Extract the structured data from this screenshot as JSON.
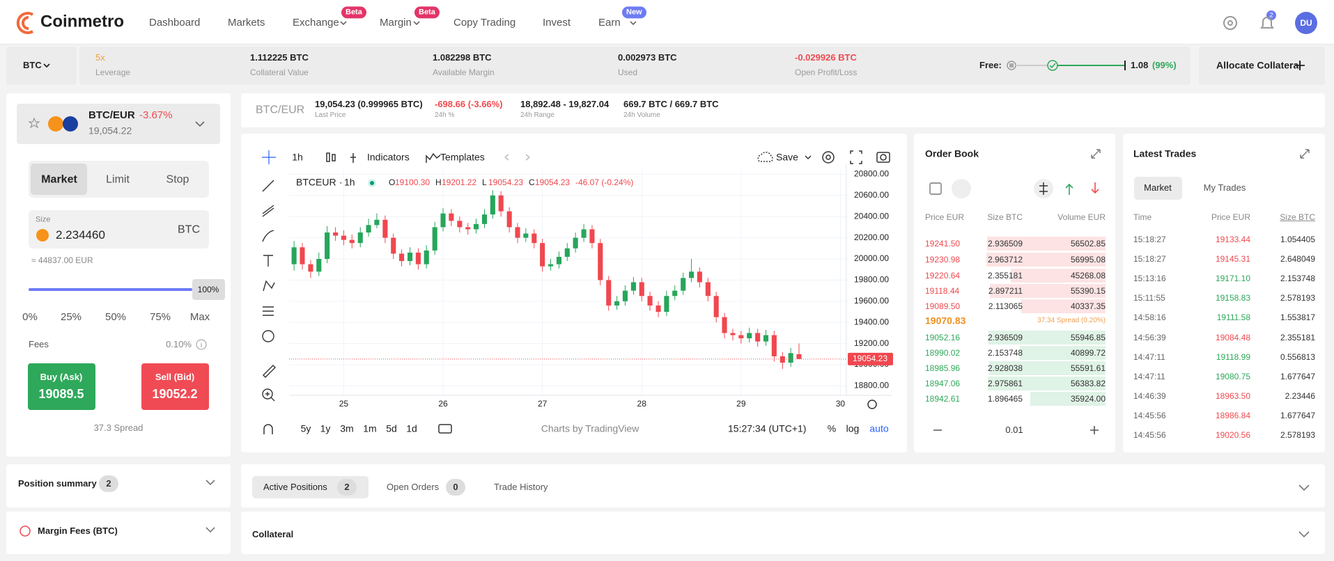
{
  "nav": {
    "logo": "Coinmetro",
    "items": [
      {
        "label": "Dashboard"
      },
      {
        "label": "Markets"
      },
      {
        "label": "Exchange",
        "badge": "Beta"
      },
      {
        "label": "Margin",
        "badge": "Beta"
      },
      {
        "label": "Copy Trading"
      },
      {
        "label": "Invest"
      },
      {
        "label": "Earn",
        "badge": "New"
      }
    ],
    "notification_count": "2",
    "avatar": "DU"
  },
  "margin_bar": {
    "asset": "BTC",
    "stats": [
      {
        "value": "5x",
        "label": "Leverage"
      },
      {
        "value": "1.112225 BTC",
        "label": "Collateral Value"
      },
      {
        "value": "1.082298 BTC",
        "label": "Available Margin"
      },
      {
        "value": "0.002973 BTC",
        "label": "Used"
      },
      {
        "value": "-0.029926 BTC",
        "label": "Open Profit/Loss"
      }
    ],
    "free_label": "Free:",
    "free_value": "1.08",
    "free_percent": "(99%)",
    "allocate_button": "Allocate Collateral"
  },
  "order_form": {
    "pair": "BTC/EUR",
    "change": "-3.67%",
    "price": "19,054.22",
    "tabs": [
      "Market",
      "Limit",
      "Stop"
    ],
    "size_label": "Size",
    "size": "2.234460",
    "size_unit": "BTC",
    "size_eur": "≈ 44837.00 EUR",
    "slider_value": "100%",
    "slider_marks": [
      "0%",
      "25%",
      "50%",
      "75%",
      "Max"
    ],
    "fees_label": "Fees",
    "fees": "0.10%",
    "buy_label": "Buy (Ask)",
    "buy_price": "19089.5",
    "sell_label": "Sell (Bid)",
    "sell_price": "19052.2",
    "spread": "37.3 Spread"
  },
  "pair_info": {
    "pair": "BTC/EUR",
    "stats": [
      {
        "value": "19,054.23 (0.999965 BTC)",
        "label": "Last Price"
      },
      {
        "value": "-698.66 (-3.66%)",
        "label": "24h %"
      },
      {
        "value": "18,892.48 - 19,827.04",
        "label": "24h Range"
      },
      {
        "value": "669.7 BTC / 669.7 BTC",
        "label": "24h Volume"
      }
    ]
  },
  "chart_toolbar": {
    "interval": "1h",
    "indicators": "Indicators",
    "templates": "Templates",
    "save": "Save"
  },
  "chart": {
    "type": "candlestick",
    "symbol": "BTCEUR",
    "interval": "1h",
    "ohlc": [
      {
        "key": "O",
        "value": "19100.30"
      },
      {
        "key": "H",
        "value": "19201.22"
      },
      {
        "key": "L",
        "value": "19054.23"
      },
      {
        "key": "C",
        "value": "19054.23"
      }
    ],
    "change": "-46.07 (-0.24%)",
    "x": [
      24.5,
      24.583,
      24.667,
      24.75,
      24.833,
      24.917,
      25,
      25.083,
      25.167,
      25.25,
      25.333,
      25.417,
      25.5,
      25.583,
      25.667,
      25.75,
      25.833,
      25.917,
      26,
      26.083,
      26.167,
      26.25,
      26.333,
      26.417,
      26.5,
      26.583,
      26.667,
      26.75,
      26.833,
      26.917,
      27,
      27.083,
      27.167,
      27.25,
      27.333,
      27.417,
      27.5,
      27.583,
      27.667,
      27.75,
      27.833,
      27.917,
      28,
      28.083,
      28.167,
      28.25,
      28.333,
      28.417,
      28.5,
      28.583,
      28.667,
      28.75,
      28.833,
      28.917,
      29,
      29.083,
      29.167,
      29.25,
      29.333,
      29.417,
      29.5,
      29.583
    ],
    "candles": [
      [
        19950,
        20170,
        19890,
        20110
      ],
      [
        20110,
        20150,
        19900,
        19950
      ],
      [
        19950,
        19990,
        19820,
        19880
      ],
      [
        19880,
        20060,
        19840,
        20000
      ],
      [
        20000,
        20310,
        19960,
        20250
      ],
      [
        20250,
        20300,
        20170,
        20220
      ],
      [
        20220,
        20270,
        20130,
        20180
      ],
      [
        20180,
        20230,
        20100,
        20150
      ],
      [
        20150,
        20300,
        20110,
        20250
      ],
      [
        20250,
        20380,
        20210,
        20320
      ],
      [
        20320,
        20430,
        20290,
        20370
      ],
      [
        20370,
        20410,
        20150,
        20200
      ],
      [
        20200,
        20240,
        20000,
        20050
      ],
      [
        20050,
        20090,
        19930,
        19980
      ],
      [
        19980,
        20110,
        19940,
        20060
      ],
      [
        20060,
        20100,
        19900,
        19950
      ],
      [
        19950,
        20130,
        19910,
        20080
      ],
      [
        20080,
        20350,
        20040,
        20300
      ],
      [
        20300,
        20480,
        20260,
        20430
      ],
      [
        20430,
        20470,
        20310,
        20360
      ],
      [
        20360,
        20400,
        20250,
        20300
      ],
      [
        20300,
        20340,
        20230,
        20280
      ],
      [
        20280,
        20380,
        20240,
        20330
      ],
      [
        20330,
        20470,
        20290,
        20420
      ],
      [
        20420,
        20650,
        20380,
        20600
      ],
      [
        20600,
        20640,
        20400,
        20450
      ],
      [
        20450,
        20490,
        20250,
        20300
      ],
      [
        20300,
        20340,
        20150,
        20200
      ],
      [
        20200,
        20290,
        20160,
        20240
      ],
      [
        20240,
        20280,
        20100,
        20150
      ],
      [
        20150,
        20190,
        19880,
        19930
      ],
      [
        19930,
        20000,
        19890,
        19950
      ],
      [
        19950,
        20070,
        19910,
        20020
      ],
      [
        20020,
        20150,
        19980,
        20100
      ],
      [
        20100,
        20250,
        20060,
        20200
      ],
      [
        20200,
        20330,
        20160,
        20280
      ],
      [
        20280,
        20320,
        20100,
        20150
      ],
      [
        20150,
        20190,
        19750,
        19800
      ],
      [
        19800,
        19840,
        19510,
        19560
      ],
      [
        19560,
        19650,
        19520,
        19600
      ],
      [
        19600,
        19750,
        19560,
        19700
      ],
      [
        19700,
        19830,
        19660,
        19780
      ],
      [
        19780,
        19820,
        19600,
        19650
      ],
      [
        19650,
        19690,
        19510,
        19560
      ],
      [
        19560,
        19600,
        19450,
        19500
      ],
      [
        19500,
        19700,
        19460,
        19650
      ],
      [
        19650,
        19750,
        19610,
        19700
      ],
      [
        19700,
        19870,
        19660,
        19820
      ],
      [
        19820,
        20000,
        19780,
        19880
      ],
      [
        19880,
        19920,
        19730,
        19780
      ],
      [
        19780,
        19820,
        19600,
        19650
      ],
      [
        19650,
        19690,
        19400,
        19450
      ],
      [
        19450,
        19490,
        19250,
        19300
      ],
      [
        19300,
        19340,
        19230,
        19280
      ],
      [
        19280,
        19320,
        19200,
        19250
      ],
      [
        19250,
        19350,
        19210,
        19300
      ],
      [
        19300,
        19340,
        19170,
        19220
      ],
      [
        19220,
        19330,
        19180,
        19280
      ],
      [
        19280,
        19320,
        19030,
        19080
      ],
      [
        19080,
        19120,
        18960,
        19020
      ],
      [
        19020,
        19160,
        18980,
        19110
      ],
      [
        19100.3,
        19201.22,
        19054.23,
        19054.23
      ]
    ],
    "xlim": [
      24.45,
      30.06
    ],
    "ylim": [
      18711,
      20842
    ],
    "xticks": [
      25,
      26,
      27,
      28,
      29,
      30
    ],
    "yticks": [
      {
        "value": 18800,
        "label": "18800.00"
      },
      {
        "value": 19000,
        "label": "19000.00"
      },
      {
        "value": 19200,
        "label": "19200.00"
      },
      {
        "value": 19400,
        "label": "19400.00"
      },
      {
        "value": 19600,
        "label": "19600.00"
      },
      {
        "value": 19800,
        "label": "19800.00"
      },
      {
        "value": 20000,
        "label": "20000.00"
      },
      {
        "value": 20200,
        "label": "20200.00"
      },
      {
        "value": 20400,
        "label": "20400.00"
      },
      {
        "value": 20600,
        "label": "20600.00"
      },
      {
        "value": 20800,
        "label": "20800.00"
      }
    ],
    "last_label": "19054.23",
    "up_color": "#26a65b",
    "down_color": "#f0474f",
    "grid": true
  },
  "chart_footer": {
    "ranges": [
      "5y",
      "1y",
      "3m",
      "1m",
      "5d",
      "1d"
    ],
    "credit": "Charts by TradingView",
    "clock": "15:27:34 (UTC+1)",
    "percent": "%",
    "log": "log",
    "auto": "auto"
  },
  "order_book": {
    "title": "Order Book",
    "columns": [
      "Price EUR",
      "Size BTC",
      "Volume EUR"
    ],
    "asks": [
      [
        "19241.50",
        "2.936509",
        "56502.85"
      ],
      [
        "19230.98",
        "2.963712",
        "56995.08"
      ],
      [
        "19220.64",
        "2.355181",
        "45268.08"
      ],
      [
        "19118.44",
        "2.897211",
        "55390.15"
      ],
      [
        "19089.50",
        "2.113065",
        "40337.35"
      ]
    ],
    "mid_price": "19070.83",
    "spread": "37.34 Spread (0.20%)",
    "bids": [
      [
        "19052.16",
        "2.936509",
        "55946.85"
      ],
      [
        "18990.02",
        "2.153748",
        "40899.72"
      ],
      [
        "18985.96",
        "2.928038",
        "55591.61"
      ],
      [
        "18947.06",
        "2.975861",
        "56383.82"
      ],
      [
        "18942.61",
        "1.896465",
        "35924.00"
      ]
    ],
    "step": "0.01"
  },
  "latest_trades": {
    "title": "Latest Trades",
    "tabs": [
      "Market",
      "My Trades"
    ],
    "columns": [
      "Time",
      "Price EUR",
      "Size BTC"
    ],
    "rows": [
      {
        "time": "15:18:27",
        "price": "19133.44",
        "size": "1.054405",
        "side": "sell"
      },
      {
        "time": "15:18:27",
        "price": "19145.31",
        "size": "2.648049",
        "side": "sell"
      },
      {
        "time": "15:13:16",
        "price": "19171.10",
        "size": "2.153748",
        "side": "buy"
      },
      {
        "time": "15:11:55",
        "price": "19158.83",
        "size": "2.578193",
        "side": "buy"
      },
      {
        "time": "14:58:16",
        "price": "19111.58",
        "size": "1.553817",
        "side": "buy"
      },
      {
        "time": "14:56:39",
        "price": "19084.48",
        "size": "2.355181",
        "side": "sell"
      },
      {
        "time": "14:47:11",
        "price": "19118.99",
        "size": "0.556813",
        "side": "buy"
      },
      {
        "time": "14:47:11",
        "price": "19080.75",
        "size": "1.677647",
        "side": "buy"
      },
      {
        "time": "14:46:39",
        "price": "18963.50",
        "size": "2.23446",
        "side": "sell"
      },
      {
        "time": "14:45:56",
        "price": "18986.84",
        "size": "1.677647",
        "side": "sell"
      },
      {
        "time": "14:45:56",
        "price": "19020.56",
        "size": "2.578193",
        "side": "sell"
      }
    ]
  },
  "summary": {
    "position_summary": "Position summary",
    "position_count": "2",
    "margin_fees": "Margin Fees (BTC)"
  },
  "positions": {
    "tabs": [
      {
        "label": "Active Positions",
        "count": "2"
      },
      {
        "label": "Open Orders",
        "count": "0"
      },
      {
        "label": "Trade History"
      }
    ],
    "collateral": "Collateral"
  }
}
